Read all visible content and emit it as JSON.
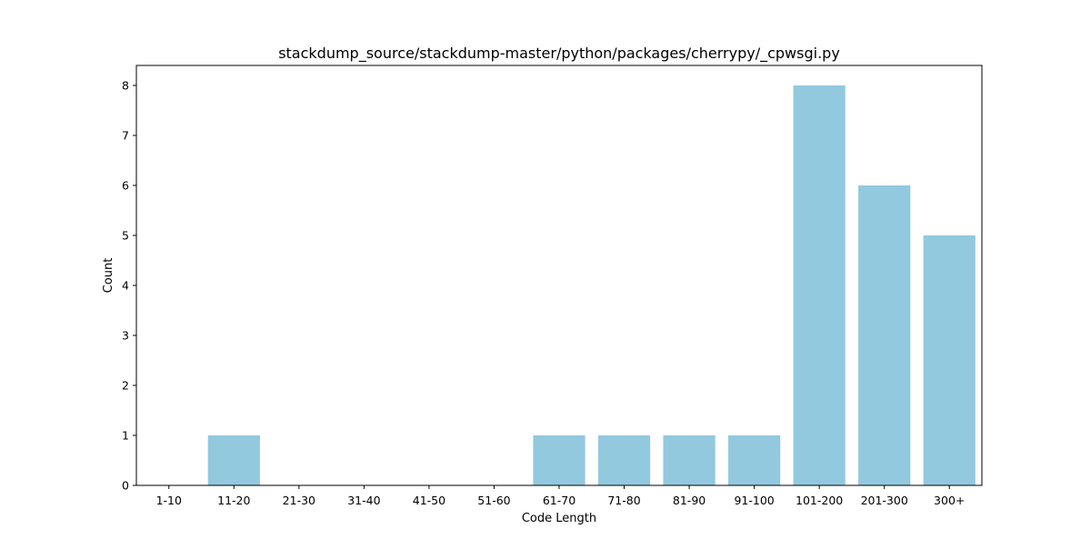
{
  "chart_data": {
    "type": "bar",
    "title": "stackdump_source/stackdump-master/python/packages/cherrypy/_cpwsgi.py",
    "xlabel": "Code Length",
    "ylabel": "Count",
    "categories": [
      "1-10",
      "11-20",
      "21-30",
      "31-40",
      "41-50",
      "51-60",
      "61-70",
      "71-80",
      "81-90",
      "91-100",
      "101-200",
      "201-300",
      "300+"
    ],
    "values": [
      0,
      1,
      0,
      0,
      0,
      0,
      1,
      1,
      1,
      1,
      8,
      6,
      5
    ],
    "yticks": [
      "0",
      "1",
      "2",
      "3",
      "4",
      "5",
      "6",
      "7",
      "8"
    ],
    "ylim": [
      0,
      8.4
    ],
    "bar_color": "#92c9df",
    "grid": false,
    "legend": "none"
  }
}
